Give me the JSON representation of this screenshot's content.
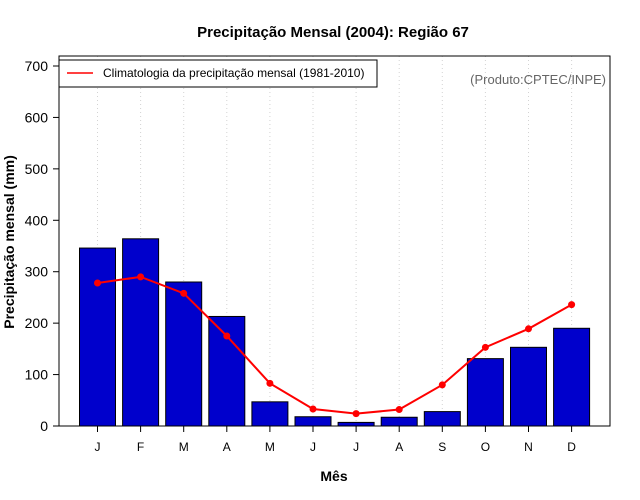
{
  "chart_data": {
    "type": "bar",
    "title": "Precipitação Mensal (2004): Região 67",
    "xlabel": "Mês",
    "ylabel": "Precipitação mensal (mm)",
    "ylim": [
      0,
      700
    ],
    "yticks": [
      0,
      100,
      200,
      300,
      400,
      500,
      600,
      700
    ],
    "categories": [
      "J",
      "F",
      "M",
      "A",
      "M",
      "J",
      "J",
      "A",
      "S",
      "O",
      "N",
      "D"
    ],
    "grid": "vertical dotted",
    "legend_position": "top-left",
    "annotation": "(Produto:CPTEC/INPE)",
    "series": [
      {
        "name": "Precipitação mensal (2004)",
        "kind": "bar",
        "color": "#0000cc",
        "values": [
          346,
          364,
          280,
          213,
          47,
          18,
          7,
          17,
          28,
          131,
          153,
          190
        ]
      },
      {
        "name": "Climatologia da precipitação mensal (1981-2010)",
        "kind": "line",
        "color": "#ff0000",
        "values": [
          278,
          290,
          258,
          175,
          83,
          33,
          24,
          32,
          80,
          153,
          189,
          236
        ]
      }
    ]
  }
}
